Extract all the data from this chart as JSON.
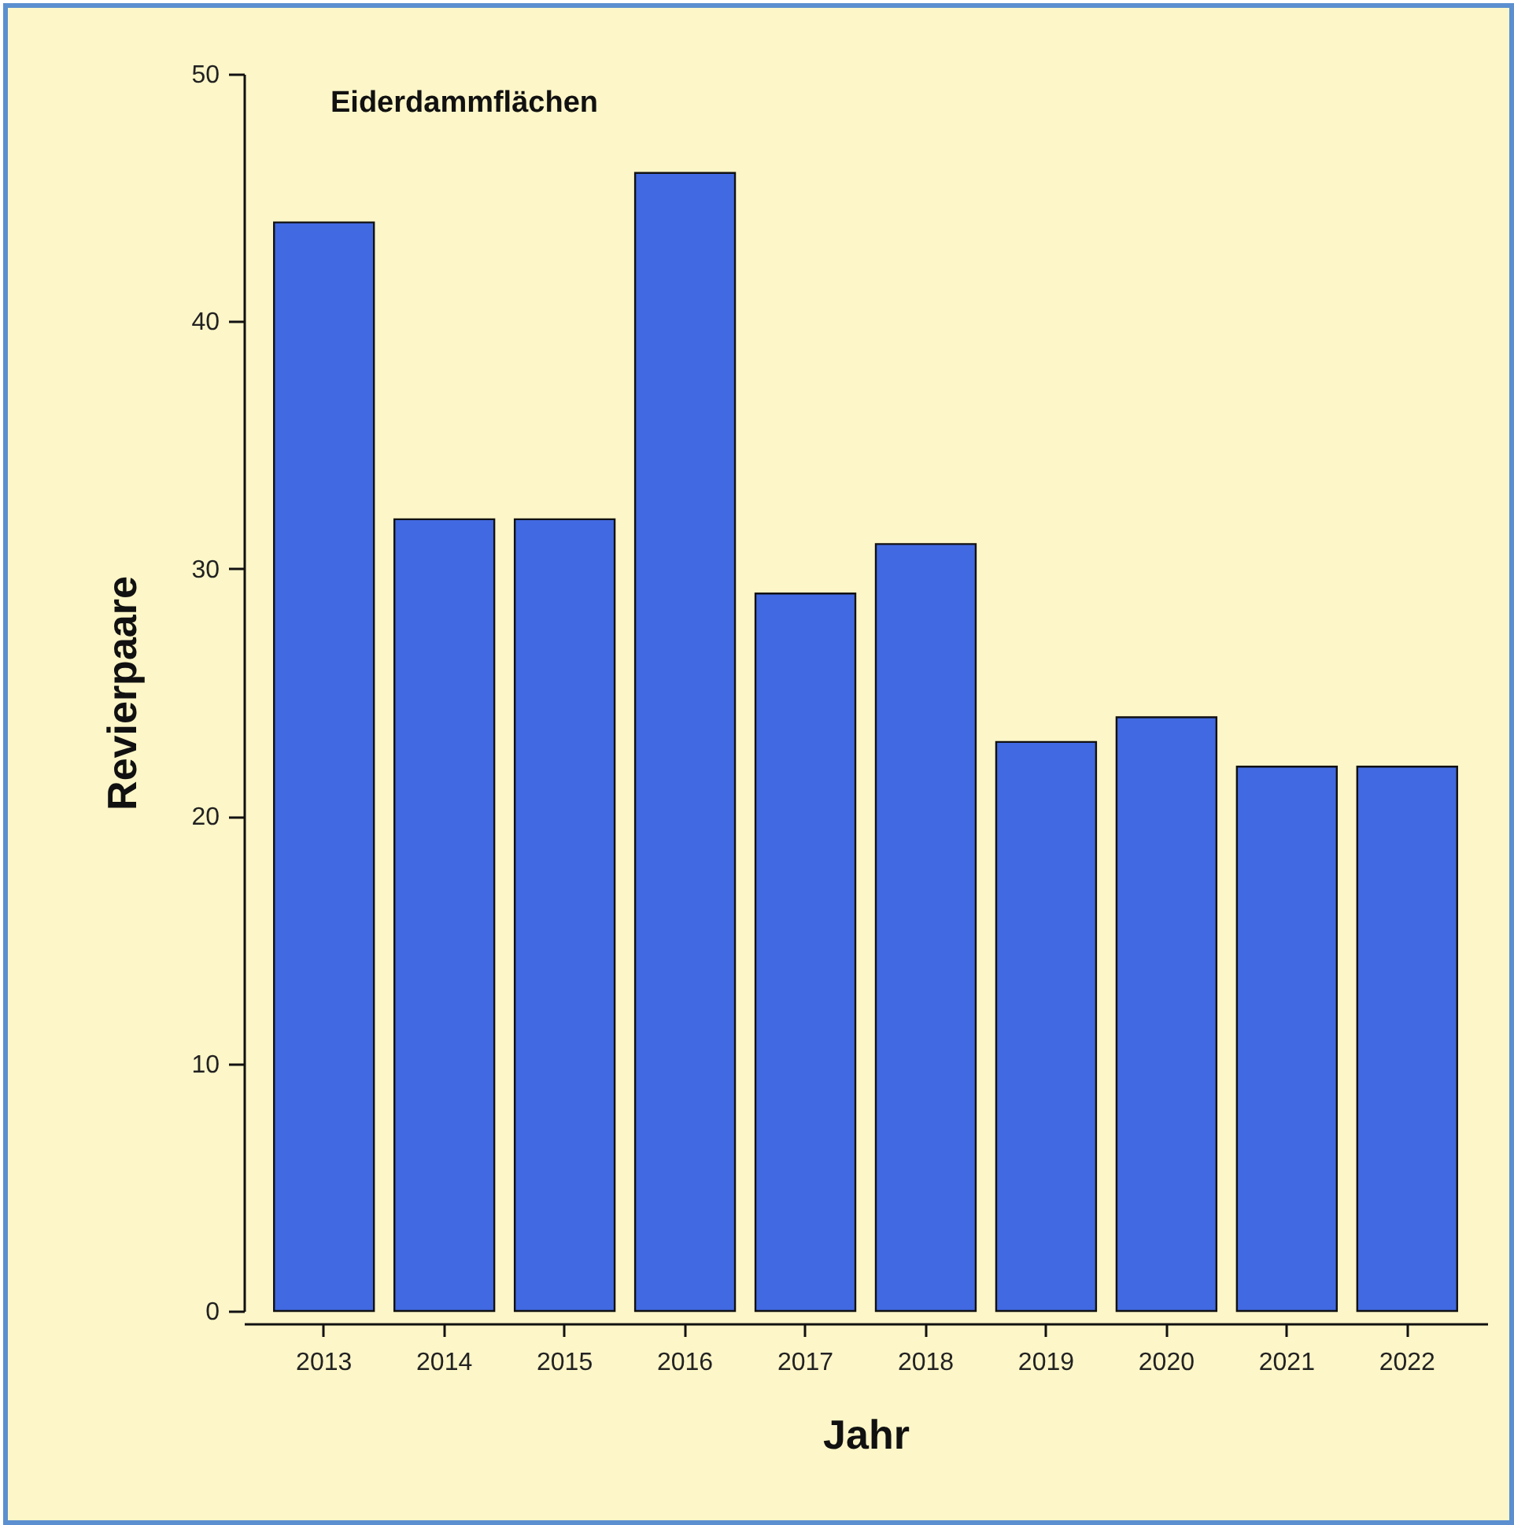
{
  "chart_data": {
    "type": "bar",
    "title": "Eiderdammflächen",
    "xlabel": "Jahr",
    "ylabel": "Revierpaare",
    "categories": [
      "2013",
      "2014",
      "2015",
      "2016",
      "2017",
      "2018",
      "2019",
      "2020",
      "2021",
      "2022"
    ],
    "values": [
      44,
      32,
      32,
      46,
      29,
      31,
      23,
      24,
      22,
      22
    ],
    "color": "#4169e1",
    "ylim": [
      0,
      50
    ],
    "yticks": [
      0,
      10,
      20,
      30,
      40,
      50
    ],
    "grid": false
  }
}
